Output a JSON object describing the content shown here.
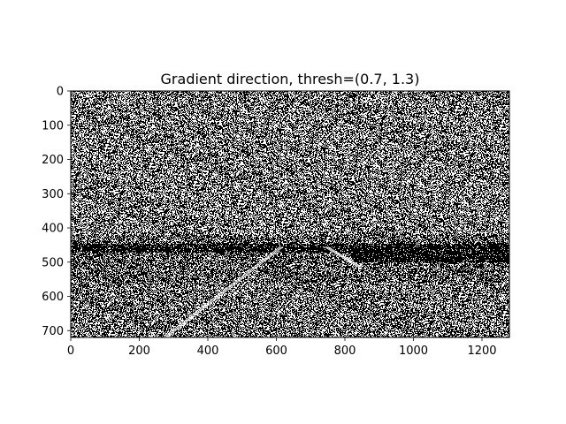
{
  "chart_data": {
    "type": "heatmap",
    "title": "Gradient direction, thresh=(0.7, 1.3)",
    "xlabel": "",
    "ylabel": "",
    "colormap": "binary (black = 0, white = 1)",
    "image_size": {
      "width": 1280,
      "height": 720
    },
    "xlim": [
      0,
      1280
    ],
    "ylim": [
      720,
      0
    ],
    "x_ticks": [
      0,
      200,
      400,
      600,
      800,
      1000,
      1200
    ],
    "y_ticks": [
      0,
      100,
      200,
      300,
      400,
      500,
      600,
      700
    ],
    "x_tick_labels": [
      "0",
      "200",
      "400",
      "600",
      "800",
      "1000",
      "1200"
    ],
    "y_tick_labels": [
      "0",
      "100",
      "200",
      "300",
      "400",
      "500",
      "600",
      "700"
    ],
    "grid": false,
    "legend": "none",
    "content": "binary mask of dense salt-and-pepper noise; white pixels are where gradient direction lies in the threshold range",
    "white_pixel_fraction": 0.45,
    "noise_regions": [
      {
        "y_range": [
          0,
          420
        ],
        "white_fraction": 0.45
      },
      {
        "y_range": [
          420,
          560
        ],
        "white_fraction": 0.35
      },
      {
        "y_range": [
          560,
          720
        ],
        "white_fraction": 0.42
      }
    ],
    "dark_bands": [
      {
        "y_range": [
          445,
          470
        ],
        "x_range": [
          0,
          1280
        ],
        "white_fraction": 0.12
      },
      {
        "y_range": [
          470,
          500
        ],
        "x_range": [
          820,
          1280
        ],
        "white_fraction": 0.1
      }
    ],
    "lane_lines": [
      {
        "from": [
          270,
          720
        ],
        "to": [
          610,
          455
        ]
      },
      {
        "from": [
          740,
          455
        ],
        "to": [
          840,
          515
        ]
      }
    ]
  }
}
